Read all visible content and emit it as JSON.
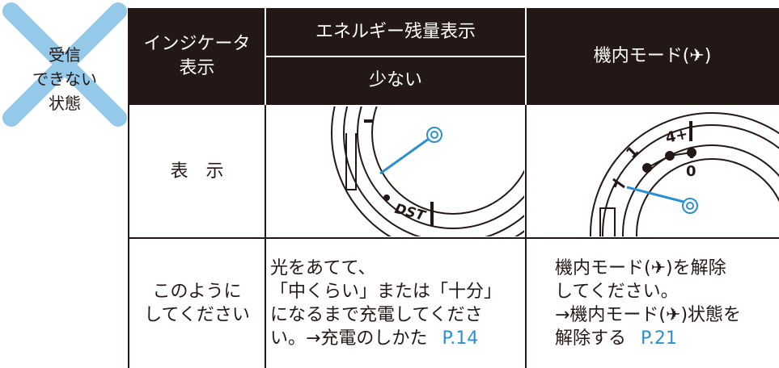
{
  "status_icon": {
    "lines": [
      "受信",
      "できない",
      "状態"
    ]
  },
  "table": {
    "header": {
      "indicator": [
        "インジケータ",
        "表示"
      ],
      "energy": "エネルギー残量表示",
      "energy_level": "少ない",
      "airplane": "機内モード(✈)"
    },
    "rows": [
      {
        "label": "表　示",
        "energy_dial": {
          "labels": [
            "DST"
          ]
        },
        "airplane_dial": {
          "labels": [
            "4+",
            "1",
            "0"
          ]
        }
      },
      {
        "label": [
          "このように",
          "してください"
        ],
        "energy_text": {
          "lines": [
            "光をあてて、",
            "「中くらい」または「十分」",
            "になるまで充電してくださ",
            "い。→充電のしかた"
          ],
          "page": "P.14"
        },
        "airplane_text": {
          "lines": [
            "機内モード(✈)を解除",
            "してください。",
            "→機内モード(✈)状態を",
            "解除する"
          ],
          "page": "P.21"
        }
      }
    ]
  }
}
